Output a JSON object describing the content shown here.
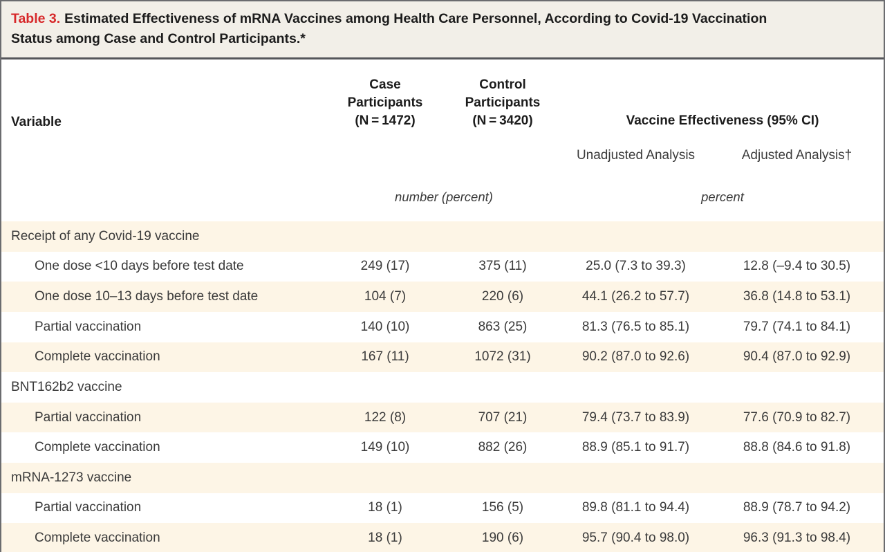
{
  "title": {
    "label": "Table 3.",
    "text": "Estimated Effectiveness of mRNA Vaccines among Health Care Personnel, According to Covid-19 Vaccination Status among Case and Control Participants.*"
  },
  "colors": {
    "accent_red": "#d7282a",
    "title_background": "#f2efe8",
    "row_shade": "#fdf5e6",
    "rule_gray": "#55565a"
  },
  "columns": {
    "variable": "Variable",
    "case": "Case\nParticipants\n(N = 1472)",
    "control": "Control\nParticipants\n(N = 3420)",
    "ve_group": "Vaccine Effectiveness (95% CI)",
    "unadjusted": "Unadjusted Analysis",
    "adjusted": "Adjusted Analysis†",
    "units_counts": "number (percent)",
    "units_ve": "percent"
  },
  "rows": [
    {
      "variable": "Receipt of any Covid-19 vaccine",
      "section": true,
      "shaded": true,
      "case": "",
      "control": "",
      "unadjusted": "",
      "adjusted": ""
    },
    {
      "variable": "One dose <10 days before test date",
      "section": false,
      "shaded": false,
      "case": "249 (17)",
      "control": "375 (11)",
      "unadjusted": "25.0 (7.3 to 39.3)",
      "adjusted": "12.8 (–9.4 to 30.5)"
    },
    {
      "variable": "One dose 10–13 days before test date",
      "section": false,
      "shaded": true,
      "case": "104 (7)",
      "control": "220 (6)",
      "unadjusted": "44.1 (26.2 to 57.7)",
      "adjusted": "36.8 (14.8 to 53.1)"
    },
    {
      "variable": "Partial vaccination",
      "section": false,
      "shaded": false,
      "case": "140 (10)",
      "control": "863 (25)",
      "unadjusted": "81.3 (76.5 to 85.1)",
      "adjusted": "79.7 (74.1 to 84.1)"
    },
    {
      "variable": "Complete vaccination",
      "section": false,
      "shaded": true,
      "case": "167 (11)",
      "control": "1072 (31)",
      "unadjusted": "90.2 (87.0 to 92.6)",
      "adjusted": "90.4 (87.0 to 92.9)"
    },
    {
      "variable": "BNT162b2 vaccine",
      "section": true,
      "shaded": false,
      "case": "",
      "control": "",
      "unadjusted": "",
      "adjusted": ""
    },
    {
      "variable": "Partial vaccination",
      "section": false,
      "shaded": true,
      "case": "122 (8)",
      "control": "707 (21)",
      "unadjusted": "79.4 (73.7 to 83.9)",
      "adjusted": "77.6 (70.9 to 82.7)"
    },
    {
      "variable": "Complete vaccination",
      "section": false,
      "shaded": false,
      "case": "149 (10)",
      "control": "882 (26)",
      "unadjusted": "88.9 (85.1 to 91.7)",
      "adjusted": "88.8 (84.6 to 91.8)"
    },
    {
      "variable": "mRNA-1273 vaccine",
      "section": true,
      "shaded": true,
      "case": "",
      "control": "",
      "unadjusted": "",
      "adjusted": ""
    },
    {
      "variable": "Partial vaccination",
      "section": false,
      "shaded": false,
      "case": "18 (1)",
      "control": "156 (5)",
      "unadjusted": "89.8 (81.1 to 94.4)",
      "adjusted": "88.9 (78.7 to 94.2)"
    },
    {
      "variable": "Complete vaccination",
      "section": false,
      "shaded": true,
      "case": "18 (1)",
      "control": "190 (6)",
      "unadjusted": "95.7 (90.4 to 98.0)",
      "adjusted": "96.3 (91.3 to 98.4)"
    }
  ]
}
